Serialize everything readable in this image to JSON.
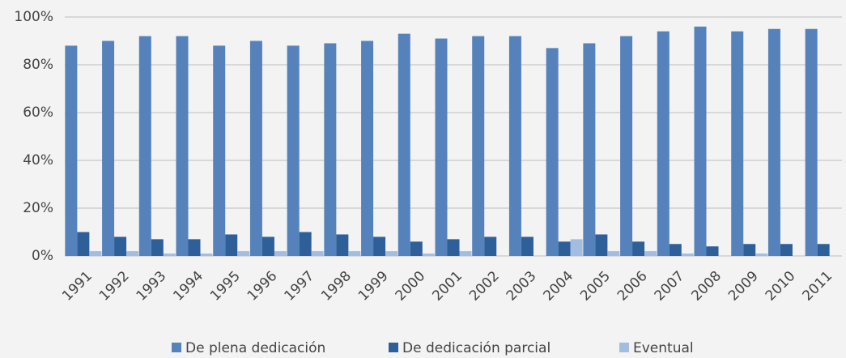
{
  "chart_data": {
    "type": "bar",
    "categories": [
      "1991",
      "1992",
      "1993",
      "1994",
      "1995",
      "1996",
      "1997",
      "1998",
      "1999",
      "2000",
      "2001",
      "2002",
      "2003",
      "2004",
      "2005",
      "2006",
      "2007",
      "2008",
      "2009",
      "2010",
      "2011"
    ],
    "series": [
      {
        "name": "De plena dedicación",
        "color": "#5682bb",
        "values": [
          88,
          90,
          92,
          92,
          88,
          90,
          88,
          89,
          90,
          93,
          91,
          92,
          92,
          87,
          89,
          92,
          94,
          96,
          94,
          95,
          95
        ]
      },
      {
        "name": "De dedicación parcial",
        "color": "#2f5f98",
        "values": [
          10,
          8,
          7,
          7,
          9,
          8,
          10,
          9,
          8,
          6,
          7,
          8,
          8,
          6,
          9,
          6,
          5,
          4,
          5,
          5,
          5
        ]
      },
      {
        "name": "Eventual",
        "color": "#a3bde0",
        "values": [
          2,
          2,
          1,
          1,
          2,
          2,
          2,
          2,
          2,
          1,
          2,
          0,
          0,
          7,
          2,
          2,
          1,
          0,
          1,
          0,
          0
        ]
      }
    ],
    "ylim": [
      0,
      100
    ],
    "yticks": [
      {
        "value": 0,
        "label": "0%"
      },
      {
        "value": 20,
        "label": "20%"
      },
      {
        "value": 40,
        "label": "40%"
      },
      {
        "value": 60,
        "label": "60%"
      },
      {
        "value": 80,
        "label": "80%"
      },
      {
        "value": 100,
        "label": "100%"
      }
    ],
    "grid": true
  }
}
